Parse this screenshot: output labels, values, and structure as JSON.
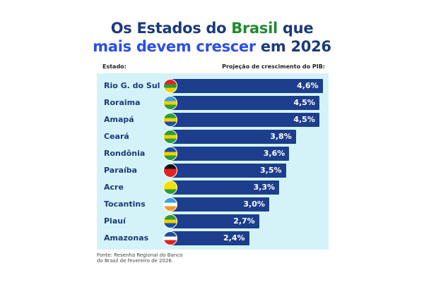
{
  "title": {
    "line1_a": "Os Estados do ",
    "line1_b": "Brasil",
    "line1_c": " que",
    "line2_a": "mais devem crescer",
    "line2_b": " em 2026"
  },
  "headers": {
    "state": "Estado:",
    "value": "Projeção de crescimento do PIB:"
  },
  "chart_data": {
    "type": "bar",
    "orientation": "horizontal",
    "categories": [
      "Rio G. do Sul",
      "Roraima",
      "Amapá",
      "Ceará",
      "Rondônia",
      "Paraíba",
      "Acre",
      "Tocantins",
      "Piauí",
      "Amazonas"
    ],
    "values": [
      4.6,
      4.5,
      4.5,
      3.8,
      3.6,
      3.5,
      3.3,
      3.0,
      2.7,
      2.4
    ],
    "labels": [
      "4,6%",
      "4,5%",
      "4,5%",
      "3,8%",
      "3,6%",
      "3,5%",
      "3,3%",
      "3,0%",
      "2,7%",
      "2,4%"
    ],
    "flag_colors": [
      [
        "#e32222",
        "#2a9d3a",
        "#f5d000"
      ],
      [
        "#3aa0e0",
        "#f5d000",
        "#2a9d3a"
      ],
      [
        "#2a9d3a",
        "#f5d000",
        "#1d4fa0"
      ],
      [
        "#2a9d3a",
        "#f5d000",
        "#2a9d3a"
      ],
      [
        "#1d4fa0",
        "#f5d000",
        "#2a9d3a"
      ],
      [
        "#111111",
        "#e32222",
        "#e32222"
      ],
      [
        "#f5e000",
        "#f5e000",
        "#2a9d3a"
      ],
      [
        "#3aa0e0",
        "#ffffff",
        "#f59a20"
      ],
      [
        "#2a9d3a",
        "#f5d000",
        "#1d4fa0"
      ],
      [
        "#1d4fa0",
        "#ffffff",
        "#e32222"
      ]
    ],
    "bar_color": "#1d3e8c"
  },
  "source": {
    "line1": "Fonte: Resenha Regional do Banco",
    "line2": "do Brasil de fevereiro de 2026."
  }
}
